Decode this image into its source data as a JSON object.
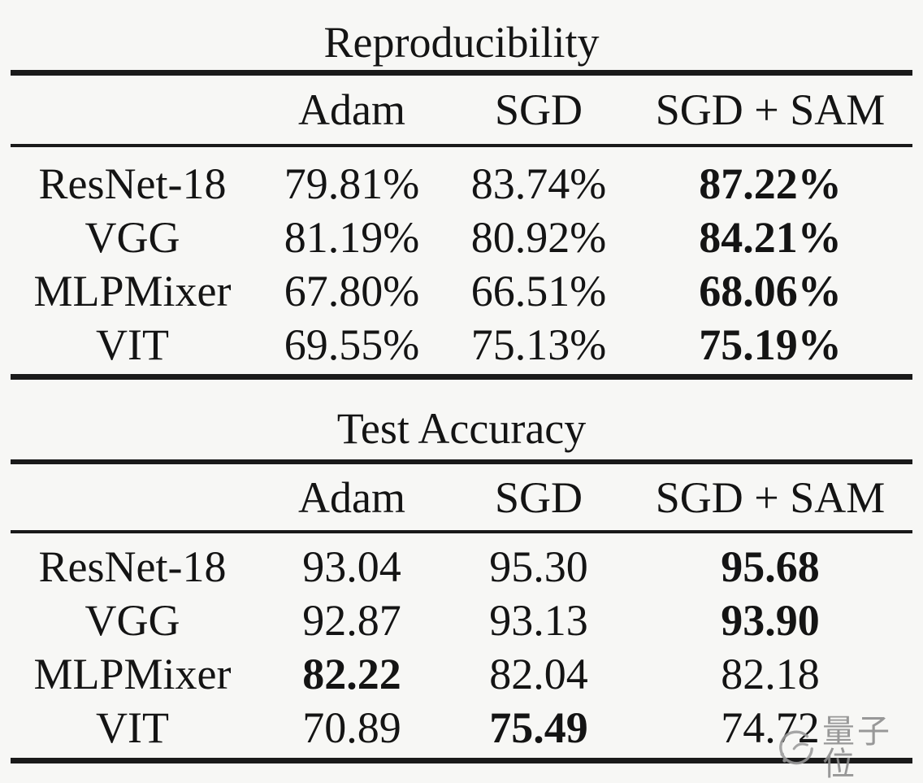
{
  "page": {
    "background_color": "#f7f7f5",
    "text_color": "#141414",
    "rule_color": "#1a1a1a"
  },
  "tables": [
    {
      "title": "Reproducibility",
      "columns": [
        "Adam",
        "SGD",
        "SGD + SAM"
      ],
      "rows": [
        {
          "label": "ResNet-18",
          "values": [
            {
              "text": "79.81%",
              "bold": false
            },
            {
              "text": "83.74%",
              "bold": false
            },
            {
              "text": "87.22%",
              "bold": true
            }
          ]
        },
        {
          "label": "VGG",
          "values": [
            {
              "text": "81.19%",
              "bold": false
            },
            {
              "text": "80.92%",
              "bold": false
            },
            {
              "text": "84.21%",
              "bold": true
            }
          ]
        },
        {
          "label": "MLPMixer",
          "values": [
            {
              "text": "67.80%",
              "bold": false
            },
            {
              "text": "66.51%",
              "bold": false
            },
            {
              "text": "68.06%",
              "bold": true
            }
          ]
        },
        {
          "label": "VIT",
          "values": [
            {
              "text": "69.55%",
              "bold": false
            },
            {
              "text": "75.13%",
              "bold": false
            },
            {
              "text": "75.19%",
              "bold": true
            }
          ]
        }
      ]
    },
    {
      "title": "Test Accuracy",
      "columns": [
        "Adam",
        "SGD",
        "SGD + SAM"
      ],
      "rows": [
        {
          "label": "ResNet-18",
          "values": [
            {
              "text": "93.04",
              "bold": false
            },
            {
              "text": "95.30",
              "bold": false
            },
            {
              "text": "95.68",
              "bold": true
            }
          ]
        },
        {
          "label": "VGG",
          "values": [
            {
              "text": "92.87",
              "bold": false
            },
            {
              "text": "93.13",
              "bold": false
            },
            {
              "text": "93.90",
              "bold": true
            }
          ]
        },
        {
          "label": "MLPMixer",
          "values": [
            {
              "text": "82.22",
              "bold": true
            },
            {
              "text": "82.04",
              "bold": false
            },
            {
              "text": "82.18",
              "bold": false
            }
          ]
        },
        {
          "label": "VIT",
          "values": [
            {
              "text": "70.89",
              "bold": false
            },
            {
              "text": "75.49",
              "bold": true
            },
            {
              "text": "74.72",
              "bold": false
            }
          ]
        }
      ]
    }
  ],
  "watermark": {
    "text": "量子位",
    "logo": "qbitai-logo",
    "color": "#8c8c8c"
  }
}
